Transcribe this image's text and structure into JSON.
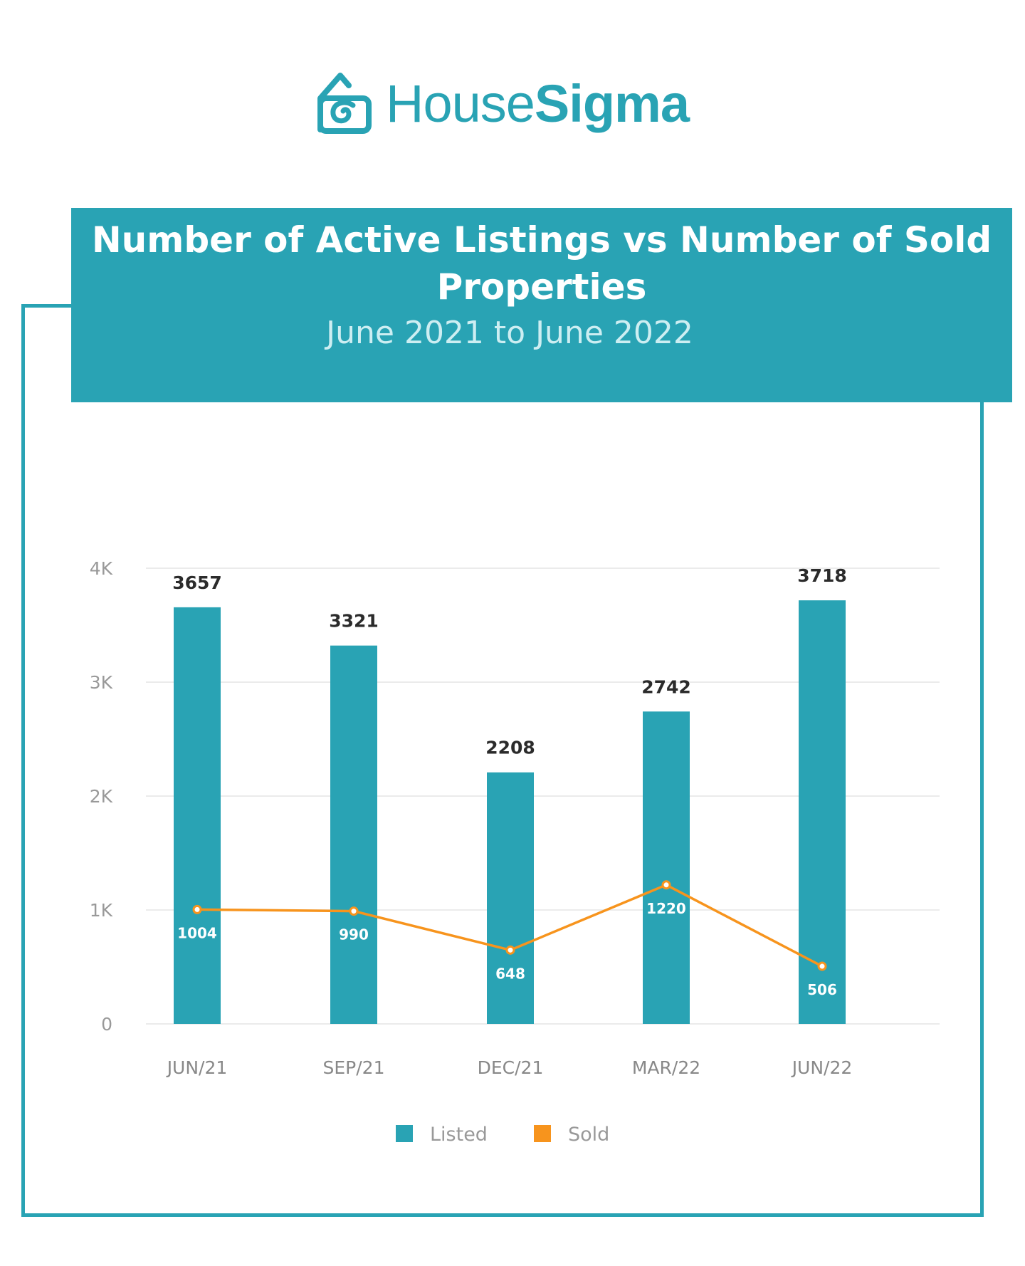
{
  "brand": {
    "name_regular": "House",
    "name_bold": "Sigma",
    "color": "#29a3b4"
  },
  "chart_data": {
    "type": "bar",
    "title": "Number of Active Listings vs Number of Sold Properties",
    "subtitle": "June 2021 to June 2022",
    "categories": [
      "JUN/21",
      "SEP/21",
      "DEC/21",
      "MAR/22",
      "JUN/22"
    ],
    "series": [
      {
        "name": "Listed",
        "type": "bar",
        "color": "#29a3b4",
        "values": [
          3657,
          3321,
          2208,
          2742,
          3718
        ]
      },
      {
        "name": "Sold",
        "type": "line",
        "color": "#f7941d",
        "values": [
          1004,
          990,
          648,
          1220,
          506
        ]
      }
    ],
    "yticks": [
      "0",
      "1K",
      "2K",
      "3K",
      "4K"
    ],
    "ylim": [
      0,
      4000
    ],
    "grid": true,
    "legend": "bottom-center"
  }
}
